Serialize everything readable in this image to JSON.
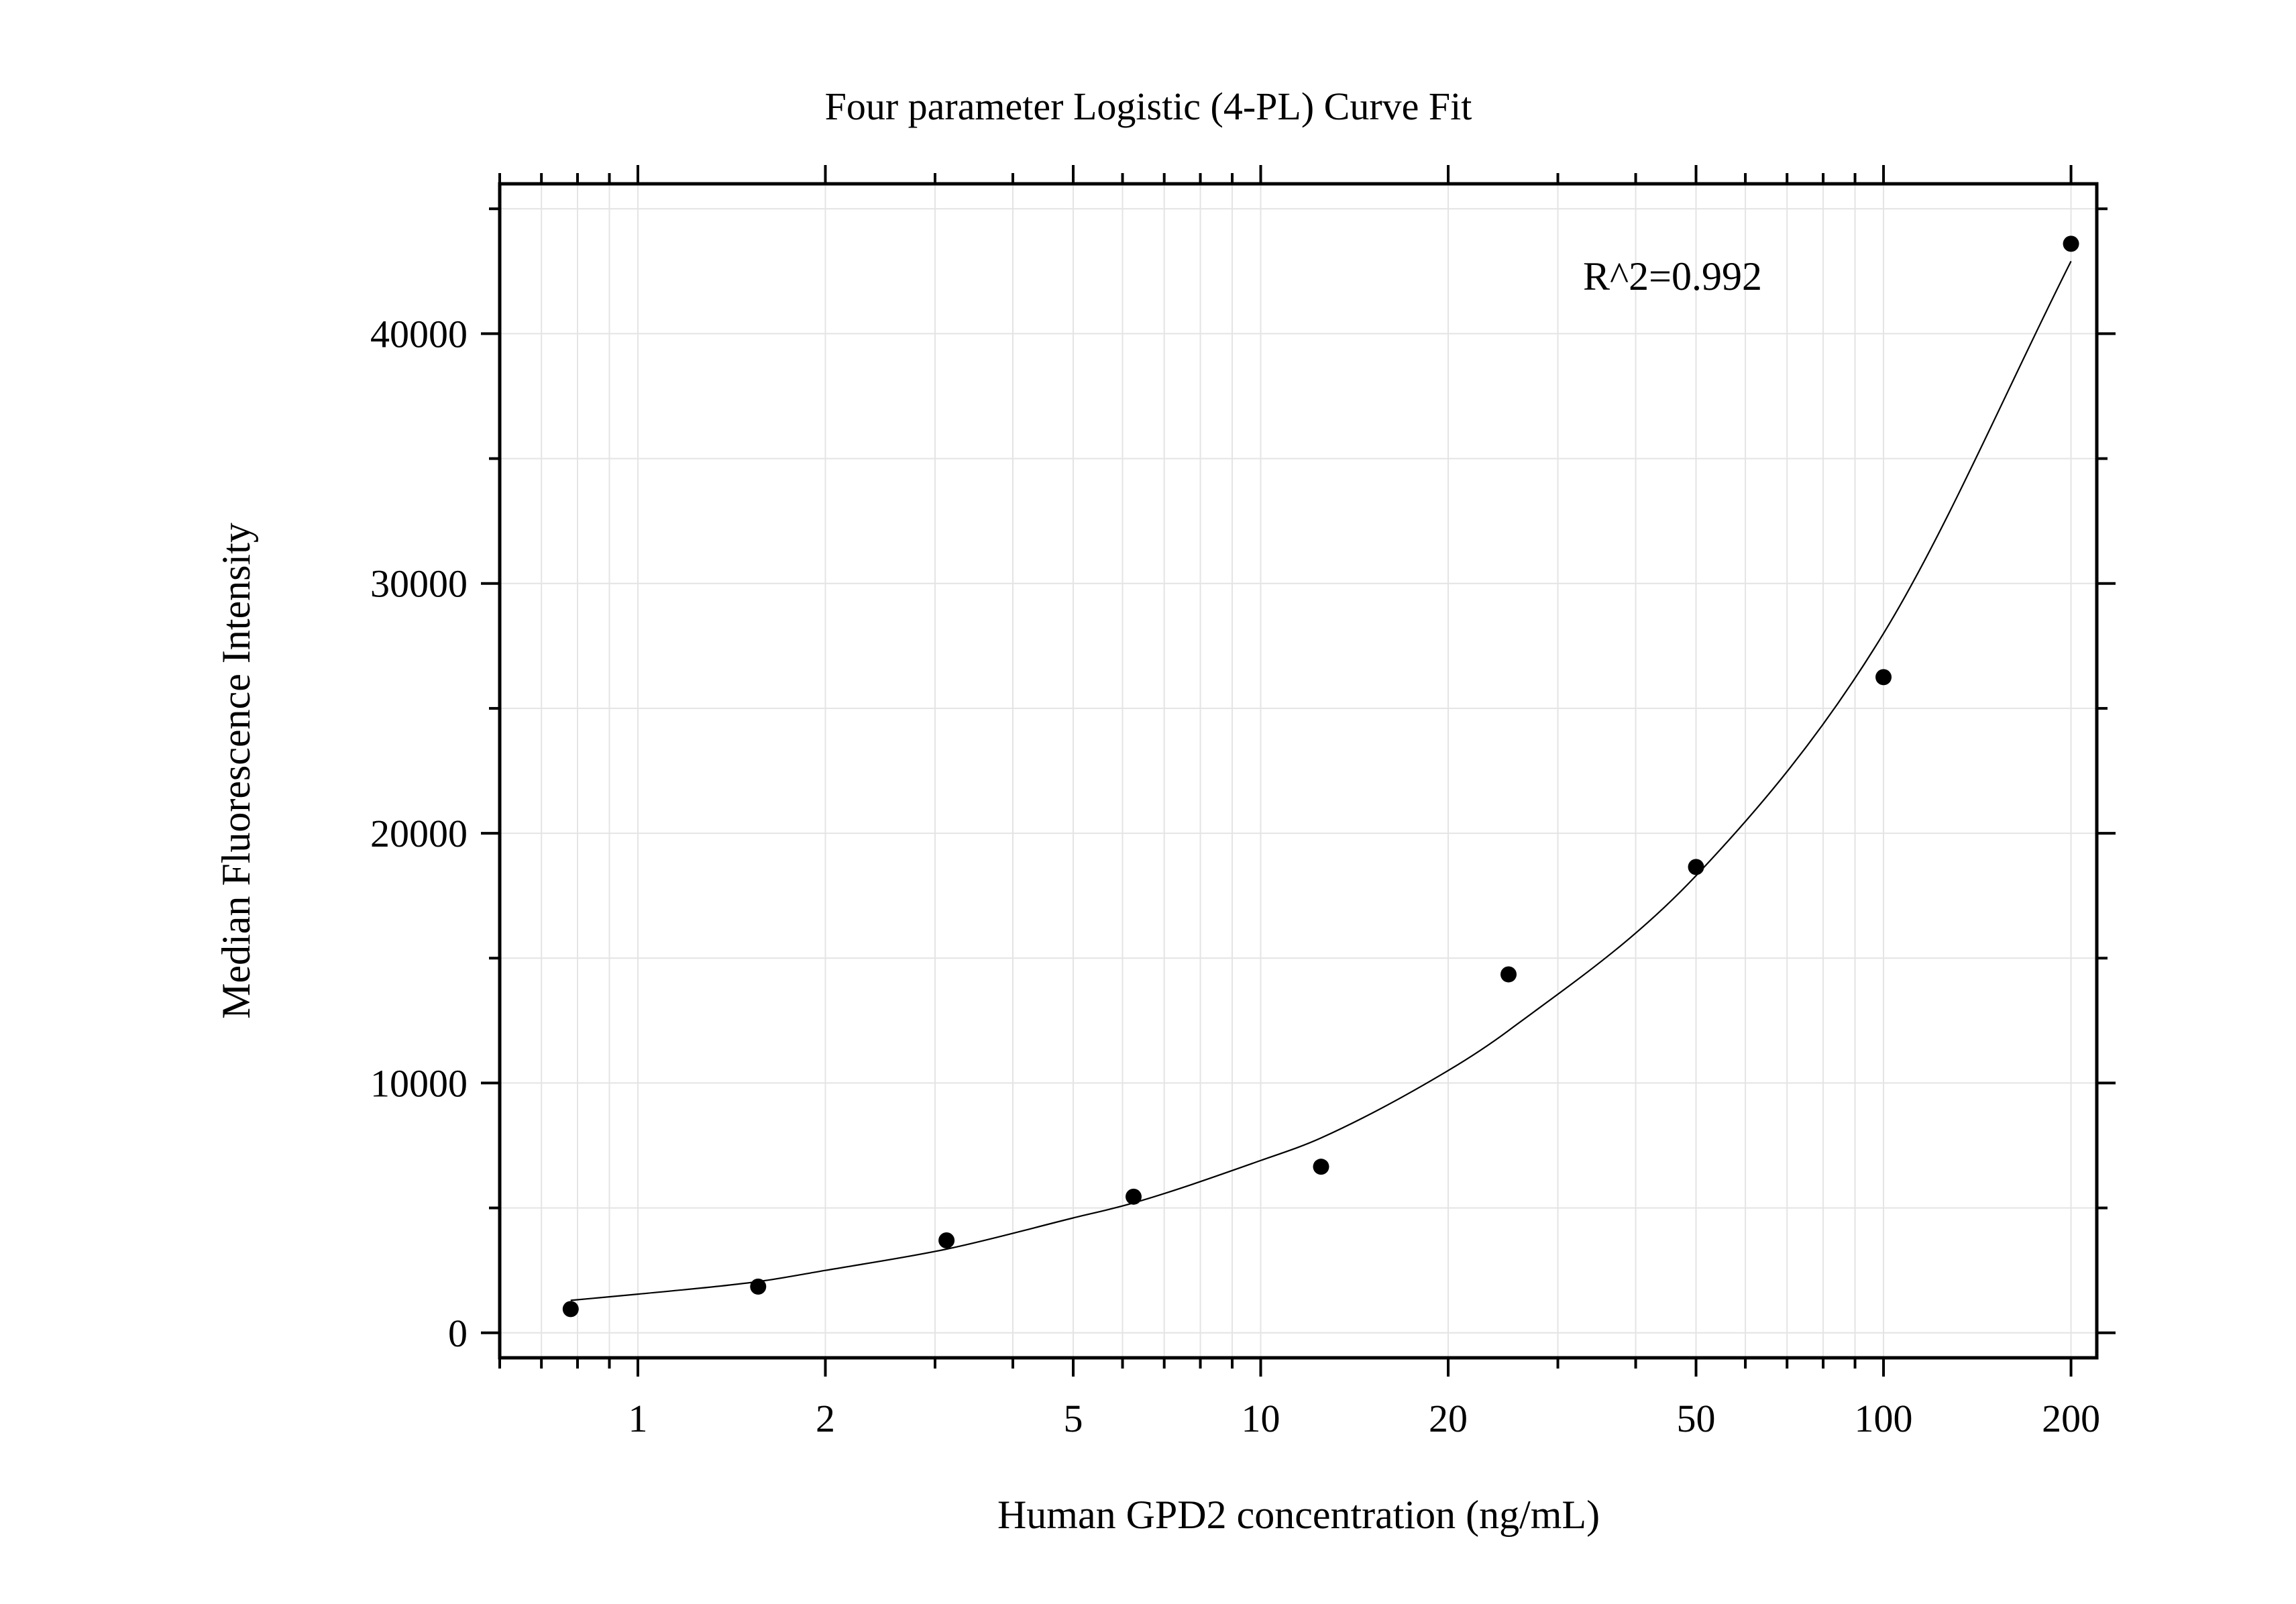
{
  "chart_data": {
    "type": "scatter",
    "title": "Four parameter Logistic (4-PL) Curve Fit",
    "xlabel": "Human GPD2 concentration (ng/mL)",
    "ylabel": "Median Fluorescence Intensity",
    "x_scale": "log",
    "xlim": [
      0.6,
      220
    ],
    "ylim": [
      -1000,
      46000
    ],
    "grid": true,
    "x_ticks": [
      1,
      2,
      5,
      10,
      20,
      50,
      100,
      200
    ],
    "x_tick_labels": [
      "1",
      "2",
      "5",
      "10",
      "20",
      "50",
      "100",
      "200"
    ],
    "y_ticks": [
      0,
      10000,
      20000,
      30000,
      40000
    ],
    "y_tick_labels": [
      "0",
      "10000",
      "20000",
      "30000",
      "40000"
    ],
    "annotation": "R^2=0.992",
    "series": [
      {
        "type": "scatter",
        "x": [
          0.78,
          1.56,
          3.13,
          6.25,
          12.5,
          25,
          50,
          100,
          200
        ],
        "y": [
          950,
          1850,
          3700,
          5450,
          6650,
          14350,
          18650,
          26250,
          43600
        ]
      },
      {
        "type": "line",
        "x": [
          0.78,
          1,
          1.56,
          2,
          3.13,
          5,
          6.25,
          10,
          12.5,
          20,
          25,
          50,
          100,
          200
        ],
        "y": [
          1300,
          1550,
          2050,
          2500,
          3350,
          4600,
          5200,
          6900,
          7800,
          10500,
          12100,
          18300,
          28000,
          42900
        ]
      }
    ],
    "colors": {
      "points": "#000000",
      "curve": "#000000",
      "grid": "#e4e4e4"
    }
  }
}
